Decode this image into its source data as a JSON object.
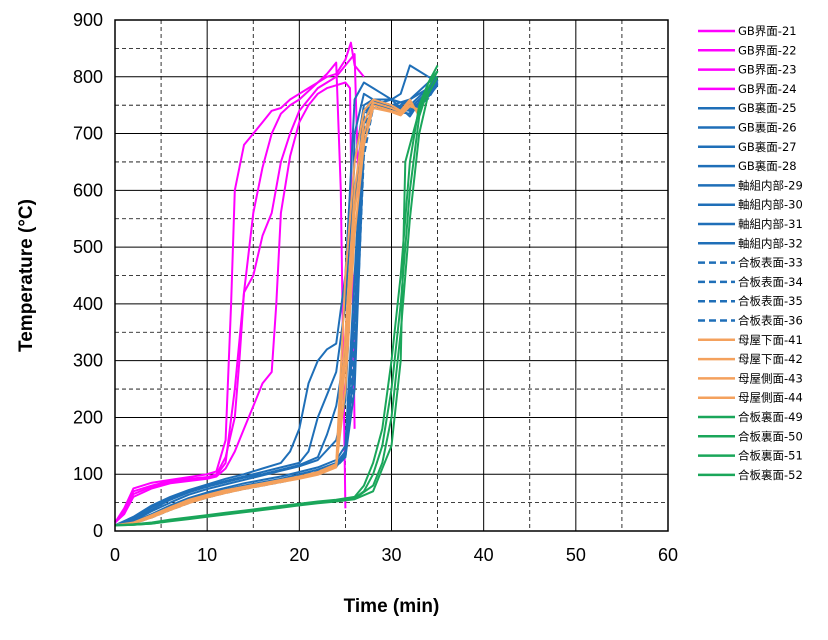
{
  "chart_data": {
    "type": "line",
    "xlabel": "Time (min)",
    "ylabel": "Temperature (°C)",
    "xlim": [
      0,
      60
    ],
    "ylim": [
      0,
      900
    ],
    "xticks": [
      0,
      10,
      20,
      30,
      40,
      50,
      60
    ],
    "yticks": [
      0,
      100,
      200,
      300,
      400,
      500,
      600,
      700,
      800,
      900
    ],
    "major_grid": "solid",
    "minor_grid": "dashed",
    "legend_position": "right",
    "colors": {
      "magenta": "#ff00ff",
      "blue": "#1f6fb8",
      "orange": "#f4a15d",
      "green": "#1aa65a"
    },
    "series": [
      {
        "name": "GB界面-21",
        "color": "#ff00ff",
        "dash": "solid",
        "x": [
          0,
          1,
          2,
          4,
          6,
          8,
          10,
          11,
          12,
          12.6,
          13,
          14,
          15,
          16,
          17,
          18,
          19,
          20,
          21,
          22,
          23,
          24,
          25,
          25.6,
          26,
          27
        ],
        "y": [
          15,
          40,
          75,
          85,
          90,
          95,
          100,
          105,
          160,
          400,
          600,
          680,
          700,
          720,
          740,
          745,
          760,
          770,
          780,
          790,
          800,
          805,
          830,
          860,
          820,
          800
        ]
      },
      {
        "name": "GB界面-22",
        "color": "#ff00ff",
        "dash": "solid",
        "x": [
          0,
          1,
          2,
          4,
          6,
          8,
          10,
          11,
          12,
          13,
          13.5,
          14,
          15,
          16,
          17,
          18,
          19,
          20,
          21,
          22,
          23,
          24,
          24.5,
          25
        ],
        "y": [
          15,
          35,
          70,
          80,
          88,
          92,
          95,
          100,
          130,
          200,
          300,
          420,
          560,
          640,
          700,
          735,
          750,
          760,
          775,
          790,
          805,
          825,
          600,
          40
        ]
      },
      {
        "name": "GB界面-23",
        "color": "#ff00ff",
        "dash": "solid",
        "x": [
          0,
          1,
          2,
          4,
          6,
          8,
          10,
          11,
          12,
          13,
          14,
          15,
          16,
          17,
          18,
          19,
          20,
          21,
          22,
          23,
          24,
          25,
          26,
          26.5
        ],
        "y": [
          15,
          30,
          65,
          78,
          86,
          90,
          93,
          98,
          120,
          250,
          420,
          450,
          520,
          560,
          650,
          700,
          740,
          760,
          780,
          790,
          800,
          820,
          840,
          560
        ]
      },
      {
        "name": "GB界面-24",
        "color": "#ff00ff",
        "dash": "solid",
        "x": [
          0,
          1,
          2,
          4,
          6,
          8,
          10,
          11,
          12,
          13,
          14,
          15,
          16,
          17,
          17.5,
          18,
          19,
          20,
          21,
          22,
          23,
          24,
          25,
          25.5,
          26
        ],
        "y": [
          15,
          30,
          60,
          75,
          84,
          88,
          92,
          96,
          110,
          140,
          180,
          220,
          260,
          280,
          400,
          560,
          660,
          720,
          750,
          770,
          780,
          785,
          790,
          780,
          180
        ]
      },
      {
        "name": "GB裏面-25",
        "color": "#1f6fb8",
        "dash": "solid",
        "x": [
          0,
          2,
          4,
          6,
          8,
          10,
          12,
          14,
          16,
          18,
          19,
          20,
          21,
          22,
          23,
          24,
          25,
          25.5,
          26,
          27,
          28,
          30,
          31,
          32,
          33,
          34,
          35
        ],
        "y": [
          10,
          25,
          45,
          60,
          72,
          82,
          92,
          100,
          110,
          120,
          140,
          180,
          260,
          300,
          320,
          330,
          450,
          600,
          760,
          790,
          780,
          760,
          770,
          820,
          810,
          800,
          790
        ]
      },
      {
        "name": "GB裏面-26",
        "color": "#1f6fb8",
        "dash": "solid",
        "x": [
          0,
          2,
          4,
          6,
          8,
          10,
          12,
          14,
          16,
          18,
          20,
          21,
          22,
          23,
          24,
          25,
          26,
          27,
          28,
          30,
          32,
          34,
          35
        ],
        "y": [
          10,
          22,
          42,
          58,
          70,
          80,
          88,
          96,
          104,
          112,
          120,
          140,
          200,
          240,
          280,
          400,
          650,
          750,
          760,
          750,
          760,
          790,
          800
        ]
      },
      {
        "name": "GB裏面-27",
        "color": "#1f6fb8",
        "dash": "solid",
        "x": [
          0,
          2,
          4,
          6,
          8,
          10,
          12,
          14,
          16,
          18,
          20,
          22,
          23,
          24,
          25,
          26,
          27,
          28,
          30,
          32,
          34,
          35
        ],
        "y": [
          10,
          20,
          38,
          55,
          68,
          78,
          86,
          94,
          100,
          108,
          116,
          130,
          170,
          220,
          320,
          580,
          740,
          750,
          760,
          730,
          780,
          800
        ]
      },
      {
        "name": "GB裏面-28",
        "color": "#1f6fb8",
        "dash": "solid",
        "x": [
          0,
          2,
          4,
          6,
          8,
          10,
          12,
          14,
          16,
          18,
          20,
          22,
          24,
          25,
          25.5,
          26,
          27,
          28,
          30,
          32,
          34,
          35
        ],
        "y": [
          10,
          18,
          35,
          50,
          64,
          74,
          82,
          90,
          98,
          106,
          114,
          125,
          160,
          230,
          400,
          700,
          770,
          760,
          740,
          760,
          780,
          800
        ]
      },
      {
        "name": "軸組内部-29",
        "color": "#1f6fb8",
        "dash": "solid",
        "x": [
          0,
          2,
          4,
          6,
          8,
          10,
          12,
          14,
          16,
          18,
          20,
          22,
          24,
          25,
          26,
          27,
          28,
          30,
          32,
          34,
          35
        ],
        "y": [
          10,
          16,
          30,
          45,
          58,
          68,
          76,
          84,
          90,
          96,
          104,
          112,
          125,
          150,
          450,
          740,
          760,
          760,
          750,
          780,
          800
        ]
      },
      {
        "name": "軸組内部-30",
        "color": "#1f6fb8",
        "dash": "solid",
        "x": [
          0,
          2,
          4,
          6,
          8,
          10,
          12,
          14,
          16,
          18,
          20,
          22,
          24,
          25,
          26,
          27,
          28,
          30,
          32,
          34,
          35
        ],
        "y": [
          10,
          15,
          28,
          42,
          55,
          65,
          73,
          80,
          86,
          92,
          100,
          108,
          120,
          140,
          380,
          720,
          755,
          750,
          745,
          775,
          795
        ]
      },
      {
        "name": "軸組内部-31",
        "color": "#1f6fb8",
        "dash": "solid",
        "x": [
          0,
          2,
          4,
          6,
          8,
          10,
          12,
          14,
          16,
          18,
          20,
          22,
          24,
          25,
          26,
          27,
          28,
          30,
          32,
          34,
          35
        ],
        "y": [
          10,
          14,
          26,
          40,
          52,
          62,
          70,
          77,
          83,
          89,
          96,
          104,
          116,
          135,
          300,
          700,
          750,
          745,
          740,
          770,
          790
        ]
      },
      {
        "name": "軸組内部-32",
        "color": "#1f6fb8",
        "dash": "solid",
        "x": [
          0,
          2,
          4,
          6,
          8,
          10,
          12,
          14,
          16,
          18,
          20,
          22,
          24,
          25,
          26,
          27,
          28,
          30,
          32,
          34,
          35
        ],
        "y": [
          10,
          14,
          25,
          38,
          50,
          60,
          68,
          75,
          81,
          87,
          94,
          102,
          114,
          130,
          250,
          680,
          745,
          740,
          735,
          765,
          785
        ]
      },
      {
        "name": "合板表面-33",
        "color": "#1f6fb8",
        "dash": "dashed",
        "x": [
          0,
          2,
          4,
          6,
          8,
          10,
          12,
          14,
          16,
          18,
          20,
          22,
          24,
          25,
          26,
          27,
          28,
          30,
          32,
          34,
          35
        ],
        "y": [
          10,
          15,
          27,
          40,
          52,
          62,
          70,
          77,
          84,
          90,
          97,
          105,
          118,
          140,
          420,
          730,
          760,
          750,
          745,
          770,
          795
        ]
      },
      {
        "name": "合板表面-34",
        "color": "#1f6fb8",
        "dash": "dashed",
        "x": [
          0,
          2,
          4,
          6,
          8,
          10,
          12,
          14,
          16,
          18,
          20,
          22,
          24,
          25,
          26,
          27,
          28,
          30,
          32,
          34,
          35
        ],
        "y": [
          10,
          14,
          26,
          39,
          51,
          61,
          69,
          76,
          82,
          88,
          95,
          103,
          116,
          135,
          360,
          710,
          755,
          748,
          742,
          768,
          792
        ]
      },
      {
        "name": "合板表面-35",
        "color": "#1f6fb8",
        "dash": "dashed",
        "x": [
          0,
          2,
          4,
          6,
          8,
          10,
          12,
          14,
          16,
          18,
          20,
          22,
          24,
          25,
          26,
          27,
          28,
          30,
          32,
          34,
          35
        ],
        "y": [
          10,
          14,
          25,
          38,
          50,
          60,
          68,
          75,
          81,
          87,
          94,
          102,
          114,
          132,
          320,
          690,
          750,
          745,
          740,
          765,
          790
        ]
      },
      {
        "name": "合板表面-36",
        "color": "#1f6fb8",
        "dash": "dashed",
        "x": [
          0,
          2,
          4,
          6,
          8,
          10,
          12,
          14,
          16,
          18,
          20,
          22,
          24,
          25,
          26,
          27,
          28,
          30,
          32,
          34,
          35
        ],
        "y": [
          10,
          13,
          24,
          37,
          49,
          59,
          67,
          74,
          80,
          86,
          93,
          101,
          113,
          130,
          280,
          660,
          745,
          740,
          738,
          762,
          788
        ]
      },
      {
        "name": "母屋下面-41",
        "color": "#f4a15d",
        "dash": "solid",
        "x": [
          0,
          2,
          4,
          6,
          8,
          10,
          12,
          14,
          16,
          18,
          20,
          22,
          24,
          25,
          26,
          27,
          28,
          30,
          31,
          32,
          33
        ],
        "y": [
          10,
          15,
          28,
          42,
          55,
          64,
          72,
          78,
          84,
          90,
          96,
          104,
          118,
          450,
          650,
          740,
          760,
          750,
          740,
          760,
          730
        ]
      },
      {
        "name": "母屋下面-42",
        "color": "#f4a15d",
        "dash": "solid",
        "x": [
          0,
          2,
          4,
          6,
          8,
          10,
          12,
          14,
          16,
          18,
          20,
          22,
          24,
          25,
          26,
          27,
          28,
          30,
          31,
          32,
          33
        ],
        "y": [
          10,
          14,
          26,
          40,
          52,
          62,
          70,
          76,
          82,
          88,
          94,
          102,
          116,
          350,
          600,
          720,
          755,
          745,
          738,
          755,
          735
        ]
      },
      {
        "name": "母屋側面-43",
        "color": "#f4a15d",
        "dash": "solid",
        "x": [
          0,
          2,
          4,
          6,
          8,
          10,
          12,
          14,
          16,
          18,
          20,
          22,
          24,
          25,
          26,
          27,
          28,
          30,
          31,
          32,
          33
        ],
        "y": [
          10,
          14,
          25,
          38,
          50,
          60,
          68,
          75,
          81,
          87,
          93,
          100,
          114,
          300,
          560,
          700,
          750,
          740,
          735,
          750,
          740
        ]
      },
      {
        "name": "母屋側面-44",
        "color": "#f4a15d",
        "dash": "solid",
        "x": [
          0,
          2,
          4,
          6,
          8,
          10,
          12,
          14,
          16,
          18,
          20,
          22,
          24,
          25,
          26,
          27,
          28,
          30,
          31,
          32,
          33
        ],
        "y": [
          10,
          13,
          24,
          37,
          49,
          59,
          67,
          74,
          80,
          86,
          92,
          99,
          112,
          250,
          520,
          680,
          745,
          738,
          732,
          748,
          742
        ]
      },
      {
        "name": "合板裏面-49",
        "color": "#1aa65a",
        "dash": "solid",
        "x": [
          0,
          2,
          4,
          6,
          8,
          10,
          12,
          14,
          16,
          18,
          20,
          22,
          24,
          26,
          27,
          28,
          29,
          30,
          31,
          32,
          33,
          34,
          35
        ],
        "y": [
          10,
          12,
          15,
          20,
          24,
          28,
          32,
          36,
          40,
          44,
          48,
          52,
          55,
          60,
          80,
          120,
          180,
          300,
          450,
          650,
          750,
          790,
          820
        ]
      },
      {
        "name": "合板裏面-50",
        "color": "#1aa65a",
        "dash": "solid",
        "x": [
          0,
          2,
          4,
          6,
          8,
          10,
          12,
          14,
          16,
          18,
          20,
          22,
          24,
          26,
          27,
          28,
          29,
          30,
          31,
          32,
          33,
          34,
          35
        ],
        "y": [
          10,
          11,
          14,
          19,
          23,
          27,
          31,
          35,
          39,
          43,
          47,
          51,
          54,
          58,
          70,
          100,
          150,
          250,
          400,
          600,
          730,
          780,
          810
        ]
      },
      {
        "name": "合板裏面-51",
        "color": "#1aa65a",
        "dash": "solid",
        "x": [
          0,
          2,
          4,
          6,
          8,
          10,
          12,
          14,
          16,
          18,
          20,
          22,
          24,
          26,
          28,
          29,
          30,
          31,
          32,
          33,
          34,
          35
        ],
        "y": [
          10,
          11,
          13,
          18,
          22,
          26,
          30,
          34,
          38,
          42,
          46,
          50,
          53,
          57,
          80,
          120,
          200,
          350,
          550,
          700,
          770,
          800
        ]
      },
      {
        "name": "合板裏面-52",
        "color": "#1aa65a",
        "dash": "solid",
        "x": [
          0,
          2,
          4,
          6,
          8,
          10,
          12,
          14,
          16,
          18,
          20,
          22,
          24,
          26,
          28,
          30,
          31,
          31.5,
          32,
          33,
          34,
          35
        ],
        "y": [
          10,
          11,
          13,
          17,
          21,
          25,
          29,
          33,
          37,
          41,
          45,
          49,
          52,
          56,
          70,
          150,
          300,
          650,
          680,
          740,
          790,
          810
        ]
      }
    ]
  }
}
